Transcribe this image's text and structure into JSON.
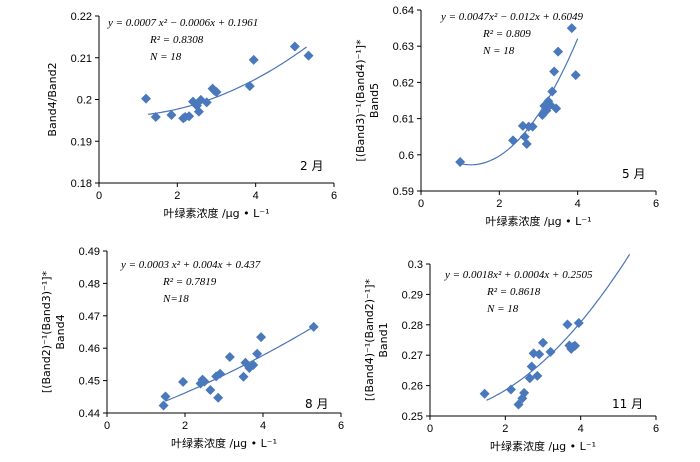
{
  "chart_data": [
    {
      "type": "scatter",
      "xlabel": "叶绿素浓度 /μg • L⁻¹",
      "ylabel": "Band4/Band2",
      "ylabel_prefix": "",
      "month": "2 月",
      "equation": "y = 0.0007 x² − 0.0006x + 0.1961",
      "r2": "R² = 0.8308",
      "n": "N = 18",
      "xlim": [
        0,
        6
      ],
      "ylim": [
        0.18,
        0.22
      ],
      "xticks": [
        "0",
        "2",
        "4",
        "6"
      ],
      "yticks": [
        "0.18",
        "0.19",
        "0.2",
        "0.21",
        "0.22"
      ],
      "fit": [
        0.0007,
        -0.0006,
        0.1961
      ],
      "fit_range": [
        1.25,
        5.3
      ],
      "points": [
        [
          1.2,
          0.2002
        ],
        [
          1.45,
          0.1958
        ],
        [
          1.85,
          0.1963
        ],
        [
          2.15,
          0.1955
        ],
        [
          2.3,
          0.196
        ],
        [
          2.4,
          0.1995
        ],
        [
          2.55,
          0.1971
        ],
        [
          2.6,
          0.1999
        ],
        [
          2.75,
          0.1993
        ],
        [
          2.9,
          0.2026
        ],
        [
          3.0,
          0.2018
        ],
        [
          3.85,
          0.2032
        ],
        [
          3.95,
          0.2095
        ],
        [
          5.0,
          0.2127
        ],
        [
          5.35,
          0.2105
        ],
        [
          2.5,
          0.1985
        ],
        [
          2.2,
          0.1958
        ],
        [
          2.95,
          0.2021
        ]
      ]
    },
    {
      "type": "scatter",
      "xlabel": "叶绿素浓度 /μg • L⁻¹",
      "ylabel": "Band5",
      "ylabel_prefix": "[(Band3)⁻¹(Band4)⁻¹]*",
      "month": "5 月",
      "equation": "y = 0.0047x² − 0.012x + 0.6049",
      "r2": "R² = 0.809",
      "n": "N = 18",
      "xlim": [
        0,
        6
      ],
      "ylim": [
        0.59,
        0.64
      ],
      "xticks": [
        "0",
        "2",
        "4",
        "6"
      ],
      "yticks": [
        "0.59",
        "0.6",
        "0.61",
        "0.62",
        "0.63",
        "0.64"
      ],
      "fit": [
        0.0047,
        -0.012,
        0.6049
      ],
      "fit_range": [
        1.0,
        4.0
      ],
      "points": [
        [
          1.0,
          0.598
        ],
        [
          2.35,
          0.604
        ],
        [
          2.6,
          0.608
        ],
        [
          2.65,
          0.605
        ],
        [
          2.7,
          0.603
        ],
        [
          2.75,
          0.6078
        ],
        [
          2.85,
          0.6078
        ],
        [
          3.1,
          0.611
        ],
        [
          3.15,
          0.6135
        ],
        [
          3.2,
          0.6122
        ],
        [
          3.25,
          0.6148
        ],
        [
          3.3,
          0.6138
        ],
        [
          3.35,
          0.6175
        ],
        [
          3.4,
          0.623
        ],
        [
          3.45,
          0.6128
        ],
        [
          3.5,
          0.6285
        ],
        [
          3.85,
          0.635
        ],
        [
          3.95,
          0.622
        ]
      ]
    },
    {
      "type": "scatter",
      "xlabel": "叶绿素浓度 /μg • L⁻¹",
      "ylabel": "Band4",
      "ylabel_prefix": "[(Band2)⁻¹(Band3)⁻¹]*",
      "month": "8 月",
      "equation": "y = 0.0003 x² + 0.004x + 0.437",
      "r2": "R² = 0.7819",
      "n": "N=18",
      "xlim": [
        0,
        6
      ],
      "ylim": [
        0.44,
        0.49
      ],
      "xticks": [
        "0",
        "2",
        "4",
        "6"
      ],
      "yticks": [
        "0.44",
        "0.45",
        "0.46",
        "0.47",
        "0.48",
        "0.49"
      ],
      "fit": [
        0.0003,
        0.004,
        0.437
      ],
      "fit_range": [
        1.5,
        5.3
      ],
      "points": [
        [
          1.45,
          0.4423
        ],
        [
          1.5,
          0.4451
        ],
        [
          1.95,
          0.4496
        ],
        [
          2.4,
          0.4491
        ],
        [
          2.45,
          0.4503
        ],
        [
          2.5,
          0.4497
        ],
        [
          2.65,
          0.4471
        ],
        [
          2.8,
          0.4513
        ],
        [
          2.85,
          0.4447
        ],
        [
          2.9,
          0.4521
        ],
        [
          3.15,
          0.4573
        ],
        [
          3.5,
          0.4512
        ],
        [
          3.55,
          0.4555
        ],
        [
          3.65,
          0.4539
        ],
        [
          3.75,
          0.4548
        ],
        [
          3.85,
          0.4583
        ],
        [
          3.95,
          0.4634
        ],
        [
          5.3,
          0.4666
        ]
      ]
    },
    {
      "type": "scatter",
      "xlabel": "叶绿素浓度 /μg • L⁻¹",
      "ylabel": "Band1",
      "ylabel_prefix": "[(Band4)⁻¹(Band2)⁻¹]*",
      "month": "11 月",
      "equation": "y = 0.0018x² + 0.0004x + 0.2505",
      "r2": "R² = 0.8618",
      "n": "N = 18",
      "xlim": [
        0,
        6
      ],
      "ylim": [
        0.25,
        0.3
      ],
      "xticks": [
        "0",
        "2",
        "4",
        "6"
      ],
      "yticks": [
        "0.25",
        "0.26",
        "0.27",
        "0.28",
        "0.29",
        "0.3"
      ],
      "fit": [
        0.0018,
        0.0004,
        0.2505
      ],
      "fit_range": [
        1.5,
        5.3
      ],
      "points": [
        [
          1.45,
          0.2573
        ],
        [
          2.15,
          0.2587
        ],
        [
          2.35,
          0.2538
        ],
        [
          2.45,
          0.2558
        ],
        [
          2.5,
          0.2576
        ],
        [
          2.65,
          0.2624
        ],
        [
          2.7,
          0.2663
        ],
        [
          2.75,
          0.2706
        ],
        [
          2.85,
          0.2632
        ],
        [
          2.9,
          0.2703
        ],
        [
          3.0,
          0.2741
        ],
        [
          3.2,
          0.2711
        ],
        [
          3.65,
          0.2801
        ],
        [
          3.7,
          0.2732
        ],
        [
          3.75,
          0.2721
        ],
        [
          3.8,
          0.2728
        ],
        [
          3.85,
          0.2731
        ],
        [
          3.95,
          0.2806
        ]
      ]
    }
  ]
}
